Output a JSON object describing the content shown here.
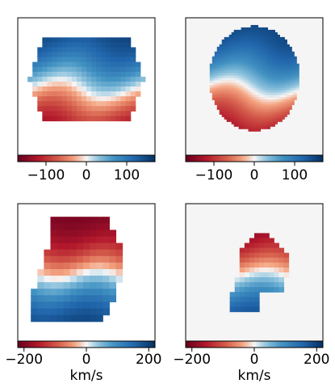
{
  "colormap": {
    "name": "RdBu",
    "low_color": "#67001f",
    "mid_color": "#f7f7f7",
    "high_color": "#053061"
  },
  "chart_data": [
    {
      "type": "heatmap",
      "panel": "top-left",
      "description_shape": "hexagonal velocity map",
      "background": "#ffffff",
      "value_range": [
        -170,
        170
      ],
      "pattern": "blue (approaching) top, red (receding) bottom",
      "colorbar": {
        "ticks": [
          -100,
          0,
          100
        ],
        "tick_labels": [
          "−100",
          "0",
          "100"
        ],
        "label": ""
      }
    },
    {
      "type": "heatmap",
      "panel": "top-right",
      "description_shape": "elliptical model velocity map",
      "background": "#f5f5f5",
      "value_range": [
        -170,
        170
      ],
      "pattern": "blue top, red bottom",
      "colorbar": {
        "ticks": [
          -100,
          0,
          100
        ],
        "tick_labels": [
          "−100",
          "0",
          "100"
        ],
        "label": ""
      }
    },
    {
      "type": "heatmap",
      "panel": "bottom-left",
      "description_shape": "irregular binned velocity map",
      "background": "#ffffff",
      "value_range": [
        -220,
        220
      ],
      "pattern": "red top, blue bottom",
      "colorbar": {
        "ticks": [
          -200,
          0,
          200
        ],
        "tick_labels": [
          "−200",
          "0",
          "200"
        ],
        "label": "km/s"
      }
    },
    {
      "type": "heatmap",
      "panel": "bottom-right",
      "description_shape": "small irregular velocity map",
      "background": "#f5f5f5",
      "value_range": [
        -220,
        220
      ],
      "pattern": "red top, blue bottom",
      "colorbar": {
        "ticks": [
          -200,
          0,
          200
        ],
        "tick_labels": [
          "−200",
          "0",
          "200"
        ],
        "label": "km/s"
      }
    }
  ]
}
